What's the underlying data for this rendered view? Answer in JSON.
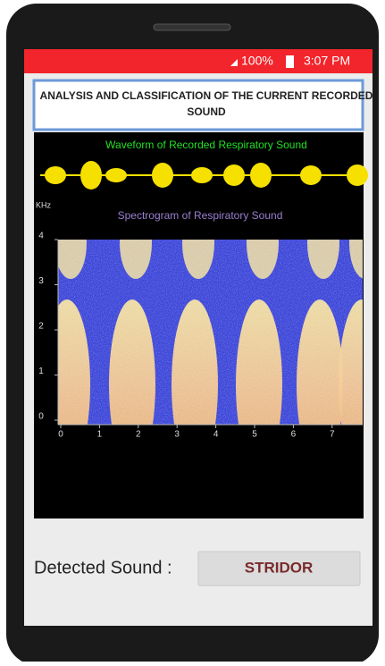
{
  "status_bar": {
    "battery": "100%",
    "time": "3:07 PM"
  },
  "header": {
    "title": "ANALYSIS AND CLASSIFICATION OF THE CURRENT RECORDED SOUND"
  },
  "waveform": {
    "title": "Waveform of Recorded Respiratory Sound"
  },
  "spectrogram": {
    "title": "Spectrogram of Respiratory Sound",
    "y_label": "KHz",
    "yticks": [
      0,
      1,
      2,
      3,
      4
    ],
    "xticks": [
      0,
      1,
      2,
      3,
      4,
      5,
      6,
      7
    ]
  },
  "result": {
    "label": "Detected Sound :",
    "value": "STRIDOR"
  }
}
